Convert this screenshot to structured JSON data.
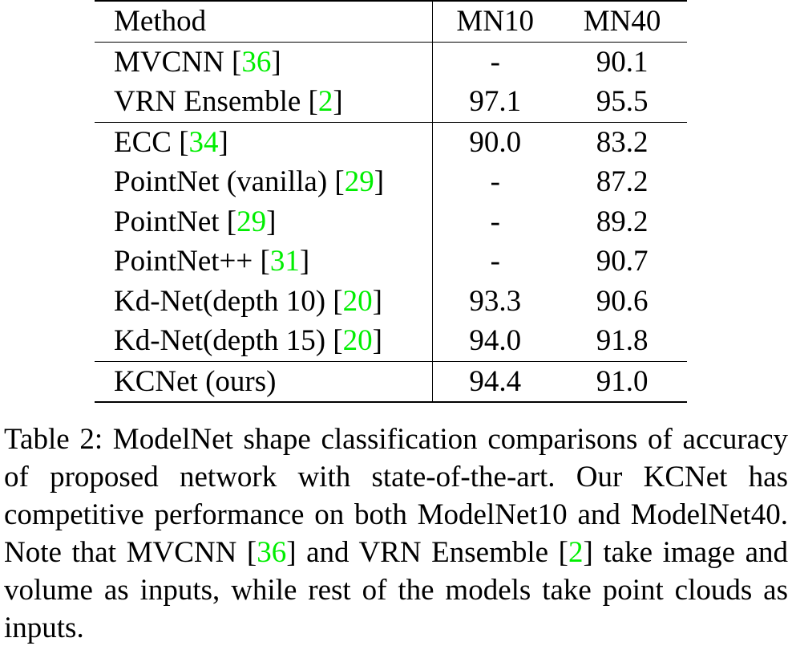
{
  "table": {
    "headers": {
      "method": "Method",
      "mn10": "MN10",
      "mn40": "MN40"
    },
    "rows": [
      {
        "method": "MVCNN [",
        "ref": "36",
        "mn10": "-",
        "mn40": "90.1",
        "bold": false
      },
      {
        "method": "VRN Ensemble [",
        "ref": "2",
        "mn10": "97.1",
        "mn40": "95.5",
        "bold": true
      },
      {
        "method": "ECC [",
        "ref": "34",
        "mn10": "90.0",
        "mn40": "83.2",
        "bold": false
      },
      {
        "method": "PointNet (vanilla) [",
        "ref": "29",
        "mn10": "-",
        "mn40": "87.2",
        "bold": false
      },
      {
        "method": "PointNet [",
        "ref": "29",
        "mn10": "-",
        "mn40": "89.2",
        "bold": false
      },
      {
        "method": "PointNet++ [",
        "ref": "31",
        "mn10": "-",
        "mn40": "90.7",
        "bold": false
      },
      {
        "method": "Kd-Net(depth 10) [",
        "ref": "20",
        "mn10": "93.3",
        "mn40": "90.6",
        "bold": false
      },
      {
        "method": "Kd-Net(depth 15) [",
        "ref": "20",
        "mn10": "94.0",
        "mn40": "91.8",
        "bold": false
      },
      {
        "method": "KCNet (ours)",
        "ref": "",
        "mn10": "94.4",
        "mn40": "91.0",
        "bold": false
      }
    ]
  },
  "caption": {
    "part1": "Table 2:  ModelNet shape classification comparisons of accuracy of proposed network with state-of-the-art.  Our KCNet has competitive performance on both ModelNet10 and ModelNet40.  Note that MVCNN [",
    "ref1": "36",
    "part2": "] and VRN Ensemble [",
    "ref2": "2",
    "part3": "] take image and volume as inputs, while rest of the models take point clouds as inputs."
  },
  "colors": {
    "citation": "#00ee00",
    "text": "#000000"
  }
}
